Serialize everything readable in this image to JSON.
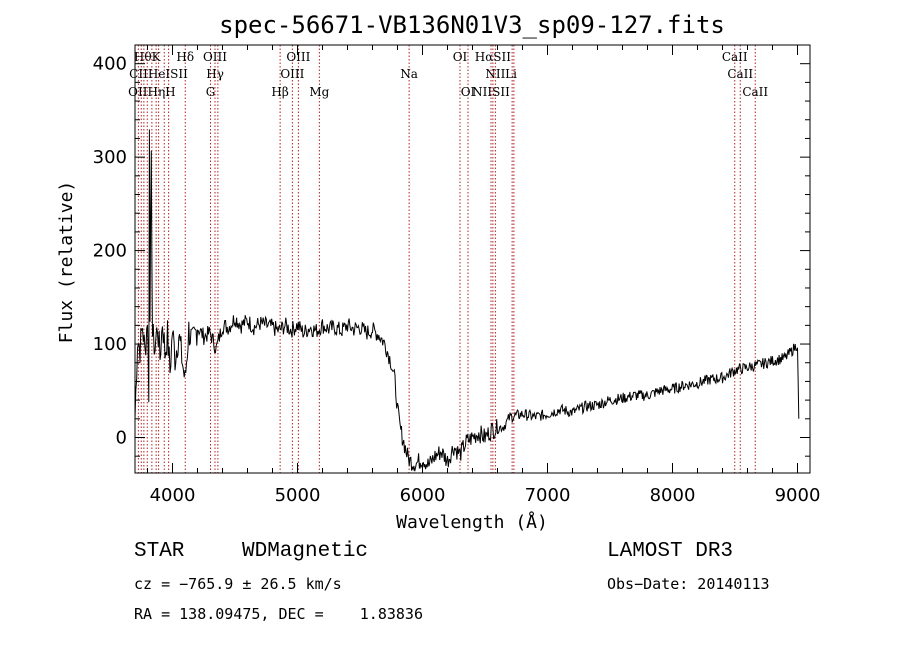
{
  "chart_data": {
    "type": "line",
    "title": "spec-56671-VB136N01V3_sp09-127.fits",
    "xlabel": "Wavelength (Å)",
    "ylabel": "Flux (relative)",
    "xlim": [
      3700,
      9100
    ],
    "ylim": [
      -38,
      420
    ],
    "xticks": [
      4000,
      5000,
      6000,
      7000,
      8000,
      9000
    ],
    "xtick_labels": [
      "4000",
      "5000",
      "6000",
      "7000",
      "8000",
      "9000"
    ],
    "yticks": [
      0,
      100,
      200,
      300,
      400
    ],
    "ytick_labels": [
      "0",
      "100",
      "200",
      "300",
      "400"
    ],
    "spectrum": [
      [
        3700,
        20
      ],
      [
        3720,
        105
      ],
      [
        3740,
        95
      ],
      [
        3760,
        120
      ],
      [
        3780,
        90
      ],
      [
        3800,
        130
      ],
      [
        3810,
        50
      ],
      [
        3815,
        330
      ],
      [
        3820,
        140
      ],
      [
        3830,
        290
      ],
      [
        3840,
        110
      ],
      [
        3860,
        95
      ],
      [
        3880,
        120
      ],
      [
        3900,
        85
      ],
      [
        3920,
        125
      ],
      [
        3940,
        90
      ],
      [
        3960,
        110
      ],
      [
        3980,
        70
      ],
      [
        4000,
        115
      ],
      [
        4020,
        85
      ],
      [
        4050,
        110
      ],
      [
        4080,
        80
      ],
      [
        4100,
        60
      ],
      [
        4130,
        115
      ],
      [
        4160,
        100
      ],
      [
        4200,
        118
      ],
      [
        4250,
        108
      ],
      [
        4300,
        112
      ],
      [
        4350,
        95
      ],
      [
        4400,
        120
      ],
      [
        4450,
        118
      ],
      [
        4500,
        128
      ],
      [
        4550,
        120
      ],
      [
        4600,
        125
      ],
      [
        4650,
        118
      ],
      [
        4700,
        122
      ],
      [
        4750,
        120
      ],
      [
        4800,
        118
      ],
      [
        4850,
        114
      ],
      [
        4900,
        120
      ],
      [
        4950,
        115
      ],
      [
        5000,
        120
      ],
      [
        5050,
        112
      ],
      [
        5100,
        118
      ],
      [
        5150,
        114
      ],
      [
        5200,
        120
      ],
      [
        5250,
        116
      ],
      [
        5300,
        118
      ],
      [
        5350,
        114
      ],
      [
        5400,
        120
      ],
      [
        5450,
        116
      ],
      [
        5500,
        118
      ],
      [
        5550,
        112
      ],
      [
        5600,
        115
      ],
      [
        5650,
        110
      ],
      [
        5700,
        100
      ],
      [
        5750,
        80
      ],
      [
        5780,
        60
      ],
      [
        5800,
        30
      ],
      [
        5820,
        10
      ],
      [
        5850,
        -5
      ],
      [
        5880,
        -20
      ],
      [
        5900,
        -25
      ],
      [
        5950,
        -28
      ],
      [
        6000,
        -22
      ],
      [
        6050,
        -30
      ],
      [
        6100,
        -20
      ],
      [
        6150,
        -15
      ],
      [
        6200,
        -25
      ],
      [
        6250,
        -10
      ],
      [
        6300,
        -18
      ],
      [
        6350,
        -5
      ],
      [
        6400,
        0
      ],
      [
        6450,
        5
      ],
      [
        6500,
        0
      ],
      [
        6550,
        8
      ],
      [
        6600,
        10
      ],
      [
        6650,
        12
      ],
      [
        6700,
        22
      ],
      [
        6800,
        25
      ],
      [
        6900,
        22
      ],
      [
        7000,
        25
      ],
      [
        7100,
        30
      ],
      [
        7200,
        27
      ],
      [
        7300,
        33
      ],
      [
        7400,
        35
      ],
      [
        7500,
        40
      ],
      [
        7600,
        42
      ],
      [
        7700,
        45
      ],
      [
        7800,
        45
      ],
      [
        7900,
        50
      ],
      [
        8000,
        52
      ],
      [
        8100,
        56
      ],
      [
        8200,
        58
      ],
      [
        8300,
        62
      ],
      [
        8400,
        64
      ],
      [
        8500,
        72
      ],
      [
        8600,
        75
      ],
      [
        8700,
        78
      ],
      [
        8800,
        82
      ],
      [
        8900,
        85
      ],
      [
        8950,
        92
      ],
      [
        9000,
        100
      ],
      [
        9010,
        20
      ]
    ],
    "lines": [
      {
        "name": "HθK",
        "wavelength": 3798,
        "row": 1
      },
      {
        "name": "Hδ",
        "wavelength": 4102,
        "row": 1
      },
      {
        "name": "OIII",
        "wavelength": 4340,
        "row": 1
      },
      {
        "name": "OIII",
        "wavelength": 5007,
        "row": 1
      },
      {
        "name": "OI",
        "wavelength": 6300,
        "row": 1
      },
      {
        "name": "HαSII",
        "wavelength": 6563,
        "row": 1
      },
      {
        "name": "CaII",
        "wavelength": 8498,
        "row": 1
      },
      {
        "name": "CIIHeISII",
        "wavelength": 3888,
        "row": 2
      },
      {
        "name": "Hγ",
        "wavelength": 4341,
        "row": 2
      },
      {
        "name": "OIII",
        "wavelength": 4959,
        "row": 2
      },
      {
        "name": "Na",
        "wavelength": 5893,
        "row": 2
      },
      {
        "name": "NII",
        "wavelength": 6583,
        "row": 2
      },
      {
        "name": "Li",
        "wavelength": 6708,
        "row": 2
      },
      {
        "name": "CaII",
        "wavelength": 8542,
        "row": 2
      },
      {
        "name": "OIIHηH",
        "wavelength": 3835,
        "row": 3
      },
      {
        "name": "G",
        "wavelength": 4304,
        "row": 3
      },
      {
        "name": "Hβ",
        "wavelength": 4861,
        "row": 3
      },
      {
        "name": "Mg",
        "wavelength": 5175,
        "row": 3
      },
      {
        "name": "OI",
        "wavelength": 6364,
        "row": 3
      },
      {
        "name": "NIISII",
        "wavelength": 6548,
        "row": 3
      },
      {
        "name": "CaII",
        "wavelength": 8662,
        "row": 3
      }
    ],
    "line_marker_wavelengths": [
      3727,
      3750,
      3771,
      3798,
      3835,
      3869,
      3889,
      3934,
      3969,
      4102,
      4304,
      4340,
      4363,
      4861,
      4959,
      5007,
      5175,
      5893,
      6300,
      6364,
      6548,
      6563,
      6583,
      6717,
      6731,
      8498,
      8542,
      8662
    ]
  },
  "info": {
    "class": "STAR",
    "subclass": "WDMagnetic",
    "cz": "cz = −765.9 ± 26.5 km/s",
    "radec": "RA = 138.09475, DEC =    1.83836",
    "survey": "LAMOST DR3",
    "obs_date": "Obs−Date: 20140113"
  }
}
